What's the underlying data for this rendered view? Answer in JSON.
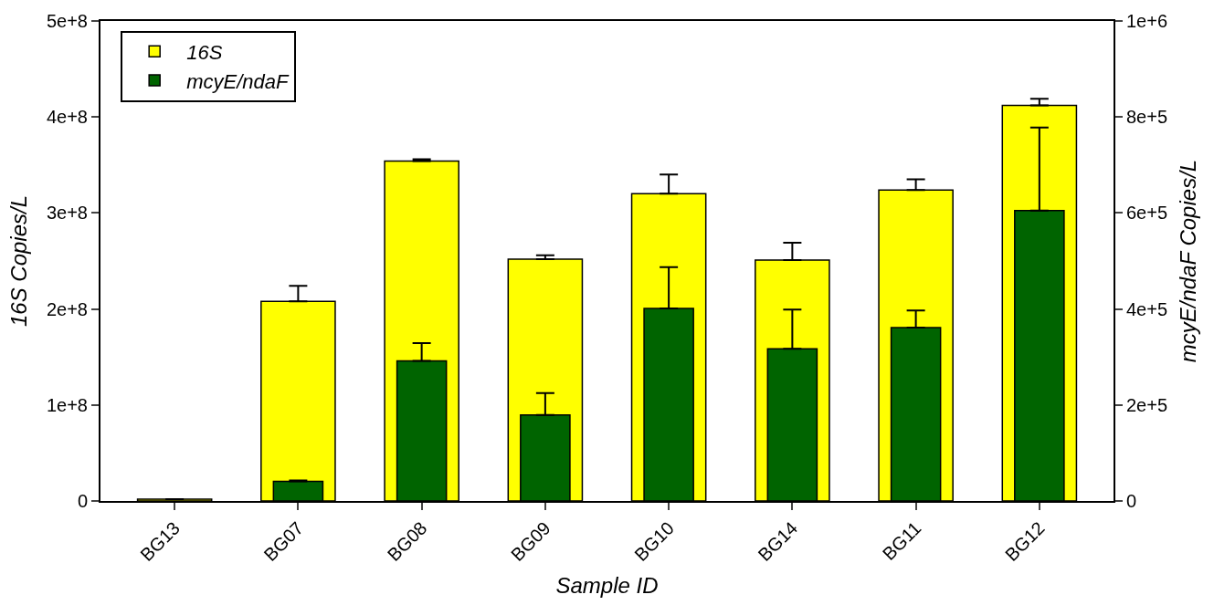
{
  "chart_data": {
    "type": "bar",
    "xlabel": "Sample ID",
    "ylabel": "16S Copies/L",
    "y2label": "mcyE/ndaF Copies/L",
    "categories": [
      "BG13",
      "BG07",
      "BG08",
      "BG09",
      "BG10",
      "BG14",
      "BG11",
      "BG12"
    ],
    "series": [
      {
        "name": "16S",
        "color": "#ffff00",
        "values": [
          2000000,
          208000000,
          354000000,
          252000000,
          320000000,
          251000000,
          324000000,
          412000000
        ],
        "errors": [
          null,
          [
            208000000,
            224000000
          ],
          [
            354000000,
            356000000
          ],
          [
            252000000,
            256000000
          ],
          [
            320000000,
            340000000
          ],
          [
            251000000,
            269000000
          ],
          [
            324000000,
            335000000
          ],
          [
            412000000,
            419000000
          ]
        ]
      },
      {
        "name": "mcyE/ndaF",
        "color": "#006400",
        "axis": "y2",
        "values": [
          null,
          41000,
          292000,
          179000,
          401000,
          317000,
          361000,
          605000
        ],
        "errors": [
          null,
          [
            41000,
            43000
          ],
          [
            292000,
            329000
          ],
          [
            179000,
            225000
          ],
          [
            401000,
            487000
          ],
          [
            317000,
            399000
          ],
          [
            361000,
            397000
          ],
          [
            605000,
            778000
          ]
        ]
      }
    ],
    "ylim": [
      0,
      500000000
    ],
    "yticks": [
      0,
      {
        "value": 100000000,
        "label": "1e+8"
      },
      {
        "value": 200000000,
        "label": "2e+8"
      },
      {
        "value": 300000000,
        "label": "3e+8"
      },
      {
        "value": 400000000,
        "label": "4e+8"
      },
      {
        "value": 500000000,
        "label": "5e+8"
      }
    ],
    "y2lim": [
      0,
      1000000
    ],
    "y2ticks": [
      0,
      {
        "value": 200000,
        "label": "2e+5"
      },
      {
        "value": 400000,
        "label": "4e+5"
      },
      {
        "value": 600000,
        "label": "6e+5"
      },
      {
        "value": 800000,
        "label": "8e+5"
      },
      {
        "value": 1000000,
        "label": "1e+6"
      }
    ],
    "legend": "top left"
  }
}
